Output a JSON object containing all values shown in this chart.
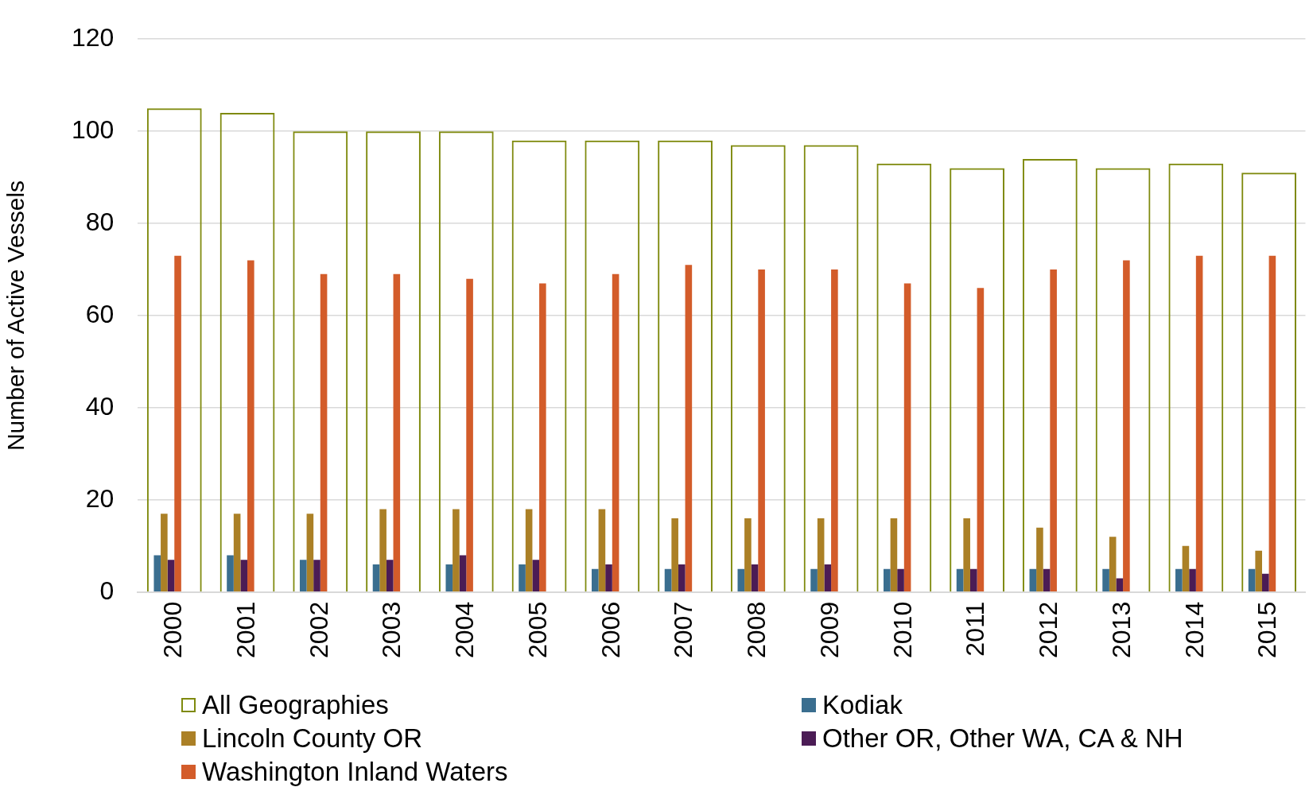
{
  "chart_data": {
    "type": "bar",
    "ylabel": "Number of Active Vessels",
    "categories": [
      "2000",
      "2001",
      "2002",
      "2003",
      "2004",
      "2005",
      "2006",
      "2007",
      "2008",
      "2009",
      "2010",
      "2011",
      "2012",
      "2013",
      "2014",
      "2015"
    ],
    "series": [
      {
        "name": "All Geographies",
        "color": "#7f8a0e",
        "values": [
          105,
          104,
          100,
          100,
          100,
          98,
          98,
          98,
          97,
          97,
          93,
          92,
          94,
          92,
          93,
          91
        ]
      },
      {
        "name": "Kodiak",
        "color": "#3a6e8f",
        "values": [
          8,
          8,
          7,
          6,
          6,
          6,
          5,
          5,
          5,
          5,
          5,
          5,
          5,
          5,
          5,
          5
        ]
      },
      {
        "name": "Lincoln County OR",
        "color": "#ab8026",
        "values": [
          17,
          17,
          17,
          18,
          18,
          18,
          18,
          16,
          16,
          16,
          16,
          16,
          14,
          12,
          10,
          9
        ]
      },
      {
        "name": "Other OR, Other WA, CA & NH",
        "color": "#4b1c55",
        "values": [
          7,
          7,
          7,
          7,
          8,
          7,
          6,
          6,
          6,
          6,
          5,
          5,
          5,
          3,
          5,
          4
        ]
      },
      {
        "name": "Washington Inland Waters",
        "color": "#d35c2a",
        "values": [
          73,
          72,
          69,
          69,
          68,
          67,
          69,
          71,
          70,
          70,
          67,
          66,
          70,
          72,
          73,
          73
        ]
      }
    ],
    "ylim": [
      0,
      120
    ],
    "yticks": [
      0,
      20,
      40,
      60,
      80,
      100,
      120
    ],
    "grid": "y",
    "legend": "bottom"
  }
}
